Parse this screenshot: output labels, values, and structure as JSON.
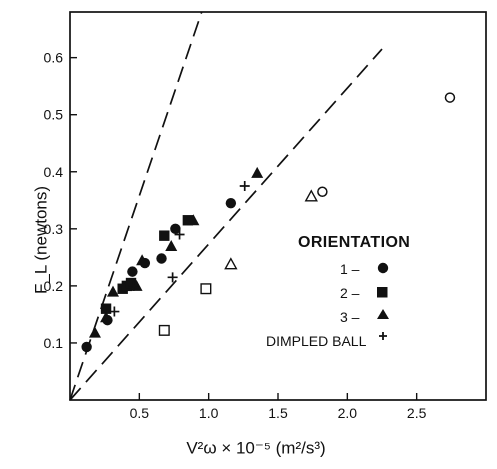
{
  "chart_data": {
    "type": "scatter",
    "xlabel": "V²ω × 10⁻⁵ (m²/s³)",
    "ylabel": "F_L (newtons)",
    "xlim": [
      0,
      3.0
    ],
    "ylim": [
      0,
      0.68
    ],
    "x_ticks": [
      0.5,
      1.0,
      1.5,
      2.0,
      2.5
    ],
    "x_tick_labels": [
      "0.5",
      "1.0",
      "1.5",
      "2.0",
      "2.5"
    ],
    "y_ticks": [
      0.1,
      0.2,
      0.3,
      0.4,
      0.5,
      0.6
    ],
    "y_tick_labels": [
      "0.1",
      "0.2",
      "0.3",
      "0.4",
      "0.5",
      "0.6"
    ],
    "grid": false,
    "legend": {
      "title": "ORIENTATION",
      "placement": "center-right",
      "entries": [
        {
          "label": "1 –",
          "marker": "circle-filled"
        },
        {
          "label": "2 –",
          "marker": "square-filled"
        },
        {
          "label": "3 –",
          "marker": "triangle-filled"
        },
        {
          "label": "DIMPLED BALL",
          "marker": "plus"
        }
      ]
    },
    "series": [
      {
        "marker": "circle-filled",
        "x": [
          0.12,
          0.27,
          0.45,
          0.54,
          0.66,
          0.76,
          1.16
        ],
        "y": [
          0.093,
          0.14,
          0.225,
          0.24,
          0.248,
          0.3,
          0.345
        ]
      },
      {
        "marker": "square-filled",
        "x": [
          0.26,
          0.38,
          0.41,
          0.44,
          0.68,
          0.85
        ],
        "y": [
          0.16,
          0.195,
          0.2,
          0.205,
          0.288,
          0.315
        ]
      },
      {
        "marker": "triangle-filled",
        "x": [
          0.18,
          0.26,
          0.31,
          0.48,
          0.52,
          0.73,
          0.89,
          1.35
        ],
        "y": [
          0.118,
          0.145,
          0.19,
          0.2,
          0.245,
          0.27,
          0.315,
          0.398
        ]
      },
      {
        "marker": "plus",
        "x": [
          0.32,
          0.46,
          0.74,
          0.79,
          1.26
        ],
        "y": [
          0.155,
          0.2,
          0.215,
          0.29,
          0.375
        ]
      },
      {
        "marker": "circle-open",
        "x": [
          1.82,
          2.74
        ],
        "y": [
          0.365,
          0.53
        ]
      },
      {
        "marker": "square-open",
        "x": [
          0.68,
          0.98
        ],
        "y": [
          0.122,
          0.195
        ]
      },
      {
        "marker": "triangle-open",
        "x": [
          1.16,
          1.74
        ],
        "y": [
          0.238,
          0.357
        ]
      }
    ],
    "reference_lines": [
      {
        "style": "dashed",
        "x": [
          0,
          0.95
        ],
        "y": [
          0,
          0.68
        ]
      },
      {
        "style": "dashed",
        "x": [
          0,
          2.25
        ],
        "y": [
          0,
          0.615
        ]
      }
    ]
  }
}
